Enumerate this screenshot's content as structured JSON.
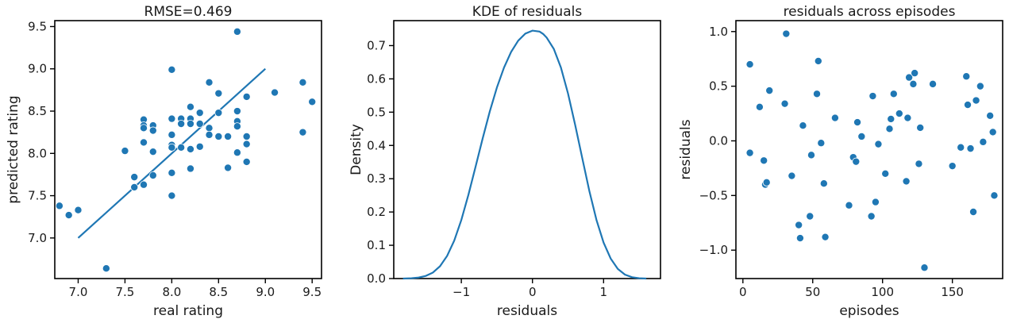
{
  "chart_data": [
    {
      "type": "scatter",
      "title": "RMSE=0.469",
      "xlabel": "real rating",
      "ylabel": "predicted rating",
      "xlim": [
        6.75,
        9.6
      ],
      "ylim": [
        6.52,
        9.57
      ],
      "xticks": [
        7.0,
        7.5,
        8.0,
        8.5,
        9.0,
        9.5
      ],
      "yticks": [
        7.0,
        7.5,
        8.0,
        8.5,
        9.0,
        9.5
      ],
      "grid": false,
      "points": [
        [
          6.8,
          7.38
        ],
        [
          6.9,
          7.27
        ],
        [
          7.0,
          7.33
        ],
        [
          7.3,
          6.64
        ],
        [
          7.5,
          8.03
        ],
        [
          7.6,
          7.72
        ],
        [
          7.6,
          7.6
        ],
        [
          7.7,
          8.4
        ],
        [
          7.7,
          8.33
        ],
        [
          7.7,
          8.3
        ],
        [
          7.7,
          8.13
        ],
        [
          7.7,
          7.63
        ],
        [
          7.8,
          8.33
        ],
        [
          7.8,
          8.27
        ],
        [
          7.8,
          8.02
        ],
        [
          7.8,
          7.74
        ],
        [
          8.0,
          8.99
        ],
        [
          8.0,
          8.41
        ],
        [
          8.0,
          8.22
        ],
        [
          8.0,
          8.1
        ],
        [
          8.0,
          8.07
        ],
        [
          8.0,
          7.77
        ],
        [
          8.0,
          7.5
        ],
        [
          8.1,
          8.41
        ],
        [
          8.1,
          8.35
        ],
        [
          8.1,
          8.07
        ],
        [
          8.2,
          8.55
        ],
        [
          8.2,
          8.41
        ],
        [
          8.2,
          8.35
        ],
        [
          8.2,
          8.05
        ],
        [
          8.2,
          7.82
        ],
        [
          8.3,
          8.48
        ],
        [
          8.3,
          8.35
        ],
        [
          8.3,
          8.08
        ],
        [
          8.4,
          8.84
        ],
        [
          8.4,
          8.3
        ],
        [
          8.4,
          8.22
        ],
        [
          8.5,
          8.71
        ],
        [
          8.5,
          8.48
        ],
        [
          8.5,
          8.2
        ],
        [
          8.6,
          8.2
        ],
        [
          8.6,
          7.83
        ],
        [
          8.7,
          9.44
        ],
        [
          8.7,
          8.5
        ],
        [
          8.7,
          8.38
        ],
        [
          8.7,
          8.32
        ],
        [
          8.7,
          8.01
        ],
        [
          8.8,
          8.67
        ],
        [
          8.8,
          8.2
        ],
        [
          8.8,
          8.11
        ],
        [
          8.8,
          7.9
        ],
        [
          9.1,
          8.72
        ],
        [
          9.4,
          8.84
        ],
        [
          9.4,
          8.25
        ],
        [
          9.5,
          8.61
        ]
      ],
      "reference_line": [
        [
          7.0,
          7.0
        ],
        [
          9.0,
          9.0
        ]
      ]
    },
    {
      "type": "line",
      "title": "KDE of residuals",
      "xlabel": "residuals",
      "ylabel": "Density",
      "xlim": [
        -1.95,
        1.8
      ],
      "ylim": [
        0,
        0.775
      ],
      "xticks": [
        -1,
        0,
        1
      ],
      "xtick_labels": [
        "−1",
        "0",
        "1"
      ],
      "yticks": [
        0.0,
        0.1,
        0.2,
        0.3,
        0.4,
        0.5,
        0.6,
        0.7
      ],
      "ytick_labels": [
        "0.0",
        "0.1",
        "0.2",
        "0.3",
        "0.4",
        "0.5",
        "0.6",
        "0.7"
      ],
      "grid": false,
      "x": [
        -1.82,
        -1.7,
        -1.6,
        -1.5,
        -1.4,
        -1.3,
        -1.2,
        -1.1,
        -1.0,
        -0.9,
        -0.8,
        -0.7,
        -0.6,
        -0.5,
        -0.4,
        -0.3,
        -0.2,
        -0.1,
        0.0,
        0.1,
        0.15,
        0.2,
        0.3,
        0.4,
        0.5,
        0.6,
        0.7,
        0.8,
        0.9,
        1.0,
        1.1,
        1.2,
        1.3,
        1.4,
        1.5,
        1.6
      ],
      "y": [
        0.0,
        0.001,
        0.003,
        0.008,
        0.018,
        0.037,
        0.068,
        0.114,
        0.176,
        0.252,
        0.336,
        0.421,
        0.502,
        0.574,
        0.634,
        0.681,
        0.715,
        0.736,
        0.745,
        0.742,
        0.735,
        0.724,
        0.69,
        0.634,
        0.556,
        0.462,
        0.362,
        0.263,
        0.176,
        0.108,
        0.06,
        0.029,
        0.012,
        0.004,
        0.001,
        0.0
      ]
    },
    {
      "type": "scatter",
      "title": "residuals across episodes",
      "xlabel": "episodes",
      "ylabel": "residuals",
      "xlim": [
        -5,
        186
      ],
      "ylim": [
        -1.26,
        1.1
      ],
      "xticks": [
        0,
        50,
        100,
        150
      ],
      "yticks": [
        -1.0,
        -0.5,
        0.0,
        0.5,
        1.0
      ],
      "ytick_labels": [
        "−1.0",
        "−0.5",
        "0.0",
        "0.5",
        "1.0"
      ],
      "grid": false,
      "points": [
        [
          5,
          0.7
        ],
        [
          5,
          -0.11
        ],
        [
          12,
          0.31
        ],
        [
          15,
          -0.18
        ],
        [
          16,
          -0.4
        ],
        [
          17,
          -0.38
        ],
        [
          19,
          0.46
        ],
        [
          30,
          0.34
        ],
        [
          31,
          0.98
        ],
        [
          35,
          -0.32
        ],
        [
          40,
          -0.77
        ],
        [
          41,
          -0.89
        ],
        [
          43,
          0.14
        ],
        [
          48,
          -0.69
        ],
        [
          49,
          -0.13
        ],
        [
          53,
          0.43
        ],
        [
          54,
          0.73
        ],
        [
          56,
          -0.02
        ],
        [
          58,
          -0.39
        ],
        [
          59,
          -0.88
        ],
        [
          66,
          0.21
        ],
        [
          76,
          -0.59
        ],
        [
          79,
          -0.15
        ],
        [
          81,
          -0.19
        ],
        [
          82,
          0.17
        ],
        [
          85,
          0.04
        ],
        [
          92,
          -0.69
        ],
        [
          93,
          0.41
        ],
        [
          95,
          -0.56
        ],
        [
          97,
          -0.03
        ],
        [
          102,
          -0.3
        ],
        [
          105,
          0.11
        ],
        [
          106,
          0.2
        ],
        [
          108,
          0.43
        ],
        [
          112,
          0.25
        ],
        [
          117,
          -0.37
        ],
        [
          118,
          0.21
        ],
        [
          119,
          0.58
        ],
        [
          122,
          0.52
        ],
        [
          123,
          0.62
        ],
        [
          126,
          -0.21
        ],
        [
          127,
          0.12
        ],
        [
          130,
          -1.16
        ],
        [
          136,
          0.52
        ],
        [
          150,
          -0.23
        ],
        [
          156,
          -0.06
        ],
        [
          160,
          0.59
        ],
        [
          161,
          0.33
        ],
        [
          163,
          -0.07
        ],
        [
          165,
          -0.65
        ],
        [
          167,
          0.37
        ],
        [
          170,
          0.5
        ],
        [
          172,
          -0.01
        ],
        [
          177,
          0.23
        ],
        [
          179,
          0.08
        ],
        [
          180,
          -0.5
        ]
      ]
    }
  ]
}
